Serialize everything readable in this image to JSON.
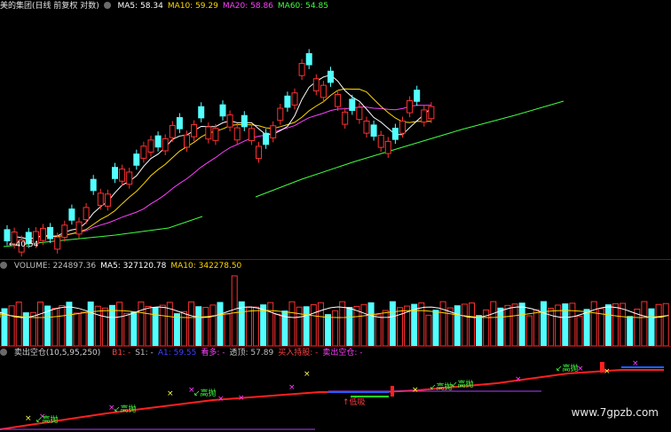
{
  "main": {
    "name": "美的集团(日线 前复权 对数)",
    "ma": [
      {
        "label": "MA5: 58.34",
        "color": "#ffffff"
      },
      {
        "label": "MA10: 59.29",
        "color": "#ffd700"
      },
      {
        "label": "MA20: 58.86",
        "color": "#ff40ff"
      },
      {
        "label": "MA60: 54.85",
        "color": "#40ff40"
      }
    ],
    "low_marker": "40.54"
  },
  "volume": {
    "items": [
      {
        "label": "VOLUME: 224897.36",
        "color": "#c0c0c0"
      },
      {
        "label": "MA5: 327120.78",
        "color": "#ffffff"
      },
      {
        "label": "MA10: 342278.50",
        "color": "#ffd700"
      }
    ]
  },
  "indicator": {
    "name": "卖出空仓(10,5,95,250)",
    "items": [
      {
        "label": "B1: -",
        "color": "#ff4040"
      },
      {
        "label": "S1: -",
        "color": "#c0c0c0"
      },
      {
        "label": "A1: 59.55",
        "color": "#4040ff"
      },
      {
        "label": "看多: -",
        "color": "#ff40ff"
      },
      {
        "label": "透顶: 57.89",
        "color": "#c0c0c0"
      },
      {
        "label": "买入持股: -",
        "color": "#ff4040"
      },
      {
        "label": "卖出空仓: -",
        "color": "#ff40ff"
      }
    ],
    "labels": {
      "gaopao": "高抛",
      "dixi": "低吸"
    }
  },
  "watermark": "www.7gpzb.com",
  "colors": {
    "up": "#ff3030",
    "down": "#54ffff",
    "ma5": "#ffffff",
    "ma10": "#ffd700",
    "ma20": "#ff40ff",
    "ma60": "#40ff40"
  }
}
